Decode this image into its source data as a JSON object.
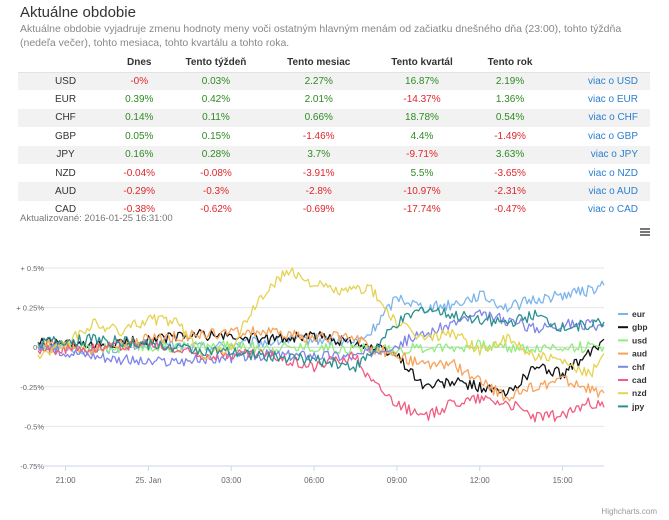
{
  "page": {
    "title": "Aktuálne obdobie",
    "description": "Aktuálne obdobie vyjadruje zmenu hodnoty meny voči ostatným hlavným menám od začiatku dnešného dňa (23:00), tohto týždňa (nedeľa večer), tohto mesiaca, tohto kvartálu a tohto roka.",
    "updated": "Aktualizované: 2016-01-25 16:31:00",
    "credits": "Highcharts.com"
  },
  "table": {
    "headers": [
      "",
      "Dnes",
      "Tento týždeň",
      "Tento mesiac",
      "Tento kvartál",
      "Tento rok",
      ""
    ],
    "rows": [
      {
        "cur": "USD",
        "v": [
          "-0%",
          "0.03%",
          "2.27%",
          "16.87%",
          "2.19%"
        ],
        "link": "viac o USD"
      },
      {
        "cur": "EUR",
        "v": [
          "0.39%",
          "0.42%",
          "2.01%",
          "-14.37%",
          "1.36%"
        ],
        "link": "viac o EUR"
      },
      {
        "cur": "CHF",
        "v": [
          "0.14%",
          "0.11%",
          "0.66%",
          "18.78%",
          "0.54%"
        ],
        "link": "viac o CHF"
      },
      {
        "cur": "GBP",
        "v": [
          "0.05%",
          "0.15%",
          "-1.46%",
          "4.4%",
          "-1.49%"
        ],
        "link": "viac o GBP"
      },
      {
        "cur": "JPY",
        "v": [
          "0.16%",
          "0.28%",
          "3.7%",
          "-9.71%",
          "3.63%"
        ],
        "link": "viac o JPY"
      },
      {
        "cur": "NZD",
        "v": [
          "-0.04%",
          "-0.08%",
          "-3.91%",
          "5.5%",
          "-3.65%"
        ],
        "link": "viac o NZD"
      },
      {
        "cur": "AUD",
        "v": [
          "-0.29%",
          "-0.3%",
          "-2.8%",
          "-10.97%",
          "-2.31%"
        ],
        "link": "viac o AUD"
      },
      {
        "cur": "CAD",
        "v": [
          "-0.38%",
          "-0.62%",
          "-0.69%",
          "-17.74%",
          "-0.47%"
        ],
        "link": "viac o CAD"
      }
    ]
  },
  "chart_data": {
    "type": "line",
    "ylim": [
      -0.75,
      0.5
    ],
    "yticks": [
      {
        "v": 0.5,
        "label": "+ 0.5%"
      },
      {
        "v": 0.25,
        "label": "+ 0.25%"
      },
      {
        "v": 0,
        "label": "0%"
      },
      {
        "v": -0.25,
        "label": "-0.25%"
      },
      {
        "v": -0.5,
        "label": "-0.5%"
      },
      {
        "v": -0.75,
        "label": "-0.75%"
      }
    ],
    "xlim": [
      20,
      40.5
    ],
    "xticks": [
      {
        "v": 21,
        "label": "21:00"
      },
      {
        "v": 24,
        "label": "25. Jan"
      },
      {
        "v": 27,
        "label": "03:00"
      },
      {
        "v": 30,
        "label": "06:00"
      },
      {
        "v": 33,
        "label": "09:00"
      },
      {
        "v": 36,
        "label": "12:00"
      },
      {
        "v": 39,
        "label": "15:00"
      }
    ],
    "legend_position": "right",
    "series": [
      {
        "name": "eur",
        "color": "#7cb5ec",
        "x": [
          20,
          22,
          24,
          26,
          28,
          30,
          31.5,
          32,
          33,
          34,
          35,
          36,
          37,
          38,
          39,
          40,
          40.5
        ],
        "y": [
          0.02,
          -0.02,
          0.02,
          0.0,
          0.03,
          0.05,
          0.03,
          0.08,
          0.32,
          0.25,
          0.27,
          0.33,
          0.25,
          0.3,
          0.33,
          0.36,
          0.39
        ]
      },
      {
        "name": "gbp",
        "color": "#111111",
        "x": [
          20,
          22,
          24,
          26,
          28,
          30,
          31.5,
          32.5,
          33,
          34,
          35,
          36,
          37,
          38,
          39,
          40,
          40.5
        ],
        "y": [
          0.03,
          0.0,
          0.05,
          0.08,
          0.05,
          0.07,
          0.03,
          -0.02,
          -0.05,
          -0.25,
          -0.22,
          -0.25,
          -0.3,
          -0.12,
          -0.17,
          -0.04,
          0.05
        ]
      },
      {
        "name": "usd",
        "color": "#90ed7d",
        "x": [
          20,
          22,
          24,
          26,
          28,
          30,
          32,
          33,
          34,
          35,
          36,
          37,
          38,
          39,
          40,
          40.5
        ],
        "y": [
          0.0,
          -0.01,
          0.0,
          0.01,
          0.0,
          0.0,
          -0.01,
          -0.02,
          0.0,
          0.0,
          0.01,
          0.0,
          -0.01,
          0.0,
          0.0,
          0.0
        ]
      },
      {
        "name": "aud",
        "color": "#f7a35c",
        "x": [
          20,
          22,
          24,
          26,
          28,
          30,
          31.5,
          32,
          33,
          34,
          35,
          36,
          37,
          38,
          39,
          40,
          40.5
        ],
        "y": [
          0.02,
          -0.02,
          0.05,
          0.08,
          0.1,
          0.06,
          0.07,
          0.0,
          -0.05,
          -0.12,
          -0.1,
          -0.22,
          -0.32,
          -0.25,
          -0.2,
          -0.27,
          -0.29
        ]
      },
      {
        "name": "chf",
        "color": "#8085e9",
        "x": [
          20,
          22,
          24,
          26,
          28,
          30,
          31.5,
          32,
          33,
          34,
          35,
          36,
          37,
          38,
          39,
          40,
          40.5
        ],
        "y": [
          0.0,
          -0.05,
          -0.1,
          -0.08,
          -0.05,
          -0.05,
          -0.06,
          -0.03,
          0.02,
          0.08,
          0.15,
          0.2,
          0.17,
          0.12,
          0.15,
          0.14,
          0.14
        ]
      },
      {
        "name": "cad",
        "color": "#f15c80",
        "x": [
          20,
          22,
          24,
          26,
          28,
          30,
          31.5,
          32,
          33,
          34,
          35,
          36,
          37,
          38,
          39,
          40,
          40.5
        ],
        "y": [
          -0.02,
          0.0,
          0.02,
          -0.05,
          -0.04,
          -0.12,
          -0.05,
          -0.2,
          -0.35,
          -0.45,
          -0.35,
          -0.32,
          -0.35,
          -0.44,
          -0.43,
          -0.35,
          -0.38
        ]
      },
      {
        "name": "nzd",
        "color": "#e4d354",
        "x": [
          20,
          21,
          22,
          23,
          24,
          25,
          26,
          27,
          28,
          29,
          29.5,
          30,
          31,
          32,
          33,
          34,
          35,
          36,
          37,
          38,
          39,
          40,
          40.5
        ],
        "y": [
          -0.05,
          0.02,
          0.15,
          0.1,
          0.18,
          0.16,
          -0.05,
          0.0,
          0.3,
          0.48,
          0.45,
          0.4,
          0.35,
          0.38,
          0.15,
          0.05,
          0.1,
          -0.02,
          0.05,
          -0.05,
          -0.1,
          -0.18,
          -0.04
        ]
      },
      {
        "name": "jpy",
        "color": "#2b908f",
        "x": [
          20,
          22,
          24,
          26,
          28,
          30,
          31.5,
          32,
          33,
          34,
          35,
          36,
          37,
          38,
          39,
          40,
          40.5
        ],
        "y": [
          0.03,
          0.05,
          0.02,
          -0.02,
          -0.05,
          -0.08,
          -0.12,
          -0.05,
          0.15,
          0.25,
          0.2,
          0.18,
          0.15,
          0.2,
          0.12,
          0.15,
          0.16
        ]
      }
    ]
  }
}
